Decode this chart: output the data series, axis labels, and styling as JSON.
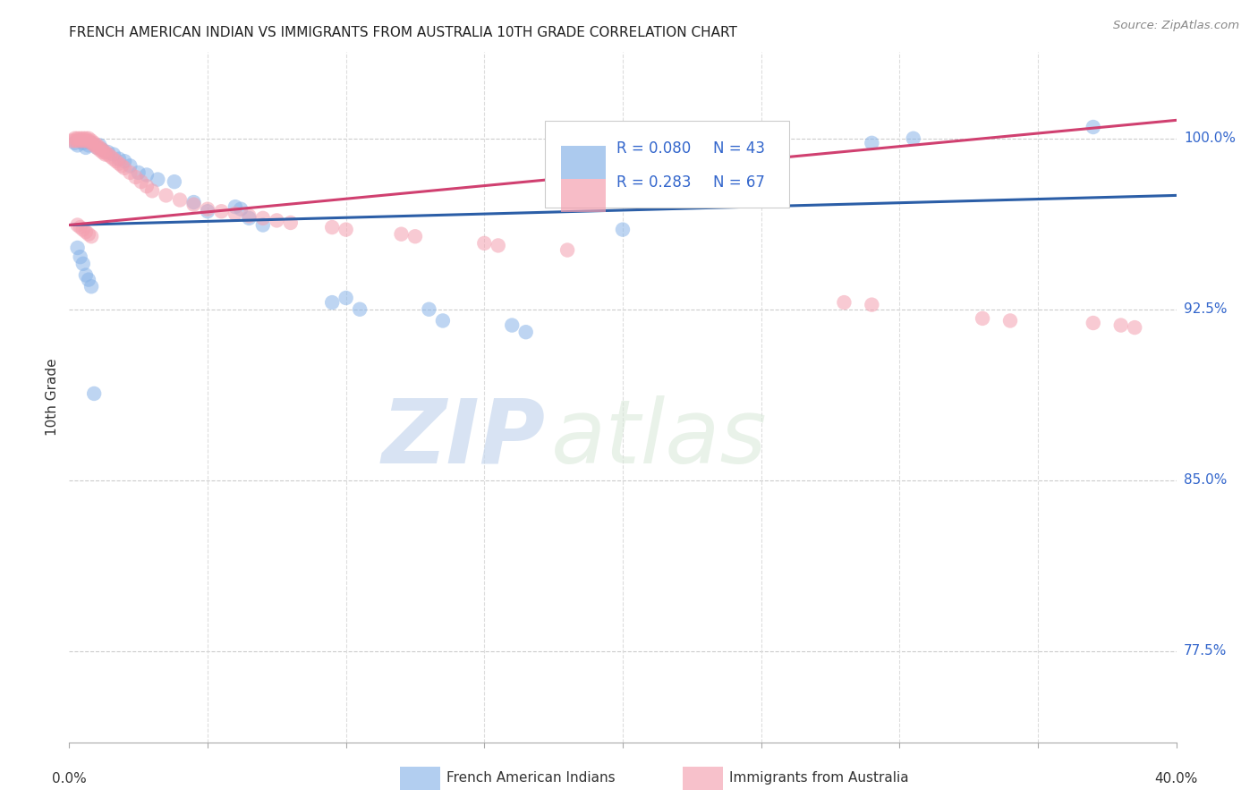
{
  "title": "FRENCH AMERICAN INDIAN VS IMMIGRANTS FROM AUSTRALIA 10TH GRADE CORRELATION CHART",
  "source": "Source: ZipAtlas.com",
  "ylabel": "10th Grade",
  "ylabel_ticks": [
    "77.5%",
    "85.0%",
    "92.5%",
    "100.0%"
  ],
  "ylabel_values": [
    0.775,
    0.85,
    0.925,
    1.0
  ],
  "xmin": 0.0,
  "xmax": 0.4,
  "ymin": 0.735,
  "ymax": 1.038,
  "watermark_zip": "ZIP",
  "watermark_atlas": "atlas",
  "legend_r1": "R = 0.080",
  "legend_n1": "N = 43",
  "legend_r2": "R = 0.283",
  "legend_n2": "N = 67",
  "blue_color": "#89b4e8",
  "pink_color": "#f4a0b0",
  "trend_blue": "#2B5EA7",
  "trend_pink": "#D04070",
  "blue_line_x": [
    0.0,
    0.4
  ],
  "blue_line_y": [
    0.962,
    0.975
  ],
  "pink_line_x": [
    0.0,
    0.4
  ],
  "pink_line_y": [
    0.962,
    1.008
  ],
  "blue_x": [
    0.002,
    0.003,
    0.004,
    0.005,
    0.006,
    0.007,
    0.008,
    0.01,
    0.011,
    0.012,
    0.014,
    0.016,
    0.018,
    0.02,
    0.022,
    0.025,
    0.028,
    0.032,
    0.038,
    0.045,
    0.05,
    0.06,
    0.062,
    0.065,
    0.07,
    0.095,
    0.1,
    0.105,
    0.13,
    0.135,
    0.16,
    0.165,
    0.2,
    0.29,
    0.305,
    0.37,
    0.003,
    0.004,
    0.005,
    0.006,
    0.007,
    0.008,
    0.009
  ],
  "blue_y": [
    0.998,
    0.997,
    0.999,
    0.998,
    0.996,
    0.997,
    0.998,
    0.996,
    0.997,
    0.995,
    0.994,
    0.993,
    0.991,
    0.99,
    0.988,
    0.985,
    0.984,
    0.982,
    0.981,
    0.972,
    0.968,
    0.97,
    0.969,
    0.965,
    0.962,
    0.928,
    0.93,
    0.925,
    0.925,
    0.92,
    0.918,
    0.915,
    0.96,
    0.998,
    1.0,
    1.005,
    0.952,
    0.948,
    0.945,
    0.94,
    0.938,
    0.935,
    0.888
  ],
  "pink_x": [
    0.001,
    0.002,
    0.002,
    0.003,
    0.003,
    0.004,
    0.004,
    0.005,
    0.005,
    0.006,
    0.006,
    0.007,
    0.007,
    0.008,
    0.008,
    0.009,
    0.009,
    0.01,
    0.01,
    0.011,
    0.011,
    0.012,
    0.012,
    0.013,
    0.013,
    0.014,
    0.015,
    0.016,
    0.017,
    0.018,
    0.019,
    0.02,
    0.022,
    0.024,
    0.026,
    0.028,
    0.03,
    0.035,
    0.04,
    0.045,
    0.05,
    0.055,
    0.06,
    0.065,
    0.07,
    0.075,
    0.08,
    0.095,
    0.1,
    0.12,
    0.125,
    0.15,
    0.155,
    0.18,
    0.28,
    0.29,
    0.33,
    0.34,
    0.37,
    0.38,
    0.385,
    0.003,
    0.004,
    0.005,
    0.006,
    0.007,
    0.008
  ],
  "pink_y": [
    0.999,
    1.0,
    0.999,
    1.0,
    0.999,
    1.0,
    0.999,
    1.0,
    0.999,
    1.0,
    0.999,
    1.0,
    0.999,
    0.999,
    0.998,
    0.998,
    0.997,
    0.997,
    0.996,
    0.996,
    0.995,
    0.995,
    0.994,
    0.994,
    0.993,
    0.993,
    0.992,
    0.991,
    0.99,
    0.989,
    0.988,
    0.987,
    0.985,
    0.983,
    0.981,
    0.979,
    0.977,
    0.975,
    0.973,
    0.971,
    0.969,
    0.968,
    0.967,
    0.966,
    0.965,
    0.964,
    0.963,
    0.961,
    0.96,
    0.958,
    0.957,
    0.954,
    0.953,
    0.951,
    0.928,
    0.927,
    0.921,
    0.92,
    0.919,
    0.918,
    0.917,
    0.962,
    0.961,
    0.96,
    0.959,
    0.958,
    0.957
  ]
}
